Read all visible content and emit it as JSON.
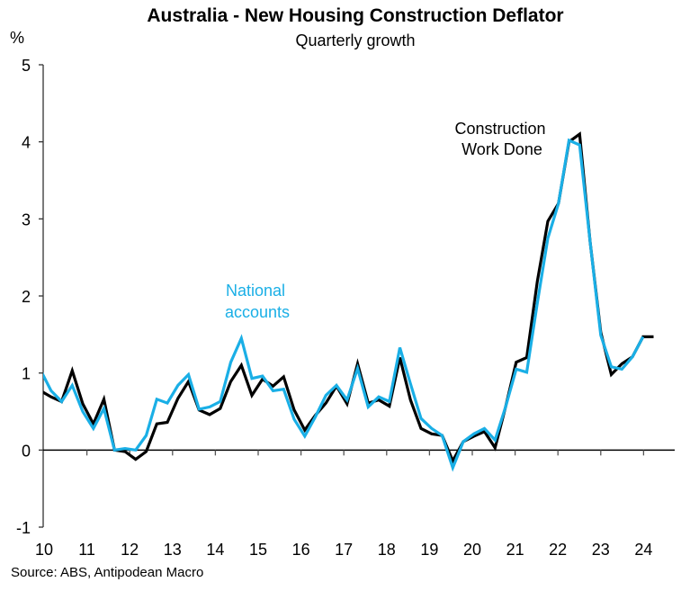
{
  "chart_data": {
    "type": "line",
    "title": "Australia - New Housing Construction Deflator",
    "subtitle": "Quarterly growth",
    "ylabel": "%",
    "xlabel": "",
    "ylim": [
      -1,
      5
    ],
    "yticks": [
      "-1",
      "0",
      "1",
      "2",
      "3",
      "4",
      "5"
    ],
    "xtick_labels": [
      "10",
      "11",
      "12",
      "13",
      "14",
      "15",
      "16",
      "17",
      "18",
      "19",
      "20",
      "21",
      "22",
      "23",
      "24"
    ],
    "x_start": "2010Q1",
    "x_frequency": "quarterly",
    "grid": false,
    "legend": "none (direct annotations)",
    "source": "Source: ABS, Antipodean Macro",
    "series": [
      {
        "name": "Construction Work Done",
        "label_lines": [
          "Construction",
          "Work Done"
        ],
        "color": "#000000",
        "values": [
          0.77,
          0.69,
          0.63,
          1.03,
          0.6,
          0.34,
          0.66,
          0.0,
          -0.02,
          -0.12,
          -0.02,
          0.34,
          0.36,
          0.67,
          0.89,
          0.52,
          0.46,
          0.54,
          0.89,
          1.1,
          0.71,
          0.92,
          0.83,
          0.95,
          0.52,
          0.26,
          0.45,
          0.61,
          0.83,
          0.6,
          1.12,
          0.61,
          0.65,
          0.57,
          1.2,
          0.65,
          0.28,
          0.21,
          0.19,
          -0.14,
          0.11,
          0.18,
          0.24,
          0.03,
          0.56,
          1.14,
          1.2,
          2.19,
          2.97,
          3.2,
          4.0,
          4.1,
          2.7,
          1.53,
          0.98,
          1.12,
          1.21,
          1.47,
          1.47
        ]
      },
      {
        "name": "National accounts",
        "label_lines": [
          "National",
          "accounts"
        ],
        "color": "#1AAFE6",
        "values": [
          1.04,
          0.77,
          0.63,
          0.84,
          0.5,
          0.28,
          0.54,
          0.0,
          0.02,
          0.0,
          0.19,
          0.66,
          0.61,
          0.84,
          0.98,
          0.53,
          0.56,
          0.63,
          1.14,
          1.45,
          0.93,
          0.96,
          0.77,
          0.79,
          0.4,
          0.18,
          0.43,
          0.71,
          0.84,
          0.65,
          1.06,
          0.56,
          0.69,
          0.63,
          1.33,
          0.86,
          0.41,
          0.28,
          0.19,
          -0.23,
          0.11,
          0.21,
          0.28,
          0.13,
          0.56,
          1.05,
          1.01,
          1.91,
          2.75,
          3.2,
          4.02,
          3.96,
          2.7,
          1.49,
          1.08,
          1.05,
          1.21,
          1.47
        ]
      }
    ]
  }
}
